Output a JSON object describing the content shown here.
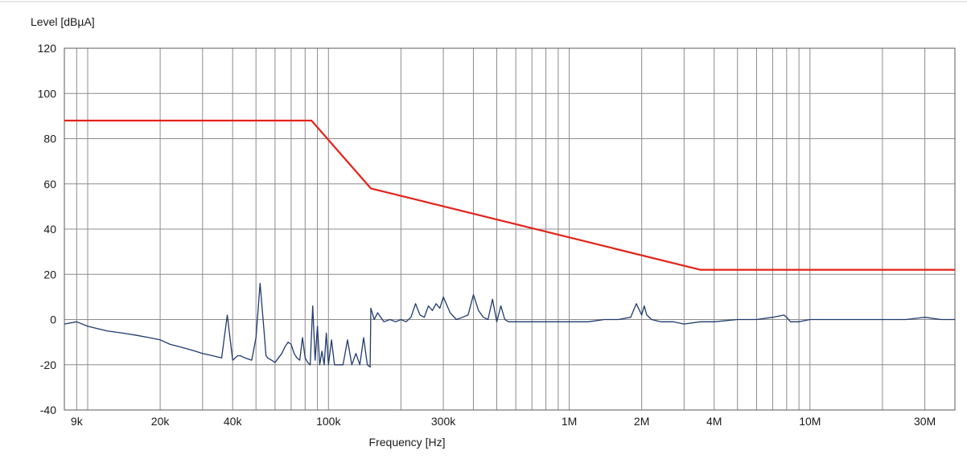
{
  "chart_data": {
    "type": "line",
    "title": "",
    "xlabel": "Frequency [Hz]",
    "ylabel": "Level [dBµA]",
    "x_scale": "log",
    "xlim": [
      8000,
      40000000
    ],
    "ylim": [
      -40,
      120
    ],
    "grid": true,
    "x_tick_labels": [
      {
        "value": 9000,
        "label": "9k"
      },
      {
        "value": 20000,
        "label": "20k"
      },
      {
        "value": 40000,
        "label": "40k"
      },
      {
        "value": 100000,
        "label": "100k"
      },
      {
        "value": 300000,
        "label": "300k"
      },
      {
        "value": 1000000,
        "label": "1M"
      },
      {
        "value": 2000000,
        "label": "2M"
      },
      {
        "value": 4000000,
        "label": "4M"
      },
      {
        "value": 10000000,
        "label": "10M"
      },
      {
        "value": 30000000,
        "label": "30M"
      }
    ],
    "y_ticks": [
      -40,
      -20,
      0,
      20,
      40,
      60,
      80,
      100,
      120
    ],
    "x_gridlines": [
      9000,
      10000,
      20000,
      30000,
      40000,
      50000,
      60000,
      70000,
      80000,
      90000,
      100000,
      200000,
      300000,
      400000,
      500000,
      600000,
      700000,
      800000,
      900000,
      1000000,
      2000000,
      3000000,
      4000000,
      5000000,
      6000000,
      7000000,
      8000000,
      9000000,
      10000000,
      20000000,
      30000000
    ],
    "series": [
      {
        "color": "#e2231a",
        "x": [
          8000,
          85000,
          150000,
          3500000,
          40000000
        ],
        "y": [
          88,
          88,
          58,
          22,
          22
        ]
      },
      {
        "color": "#1f3a6e",
        "x": [
          8000,
          9000,
          10000,
          12000,
          14000,
          16000,
          18000,
          20000,
          22000,
          24000,
          26000,
          28000,
          30000,
          33000,
          36000,
          38000,
          40000,
          41000,
          42000,
          43000,
          45000,
          48000,
          50000,
          52000,
          54000,
          55000,
          56000,
          58000,
          60000,
          62000,
          64000,
          66000,
          68000,
          70000,
          72000,
          74000,
          76000,
          78000,
          80000,
          82000,
          84000,
          86000,
          88000,
          90000,
          92000,
          94000,
          96000,
          98000,
          100000,
          103000,
          106000,
          110000,
          115000,
          120000,
          125000,
          130000,
          135000,
          140000,
          145000,
          149000,
          150000,
          155000,
          160000,
          170000,
          180000,
          190000,
          200000,
          210000,
          220000,
          230000,
          240000,
          250000,
          260000,
          270000,
          280000,
          290000,
          300000,
          320000,
          340000,
          360000,
          380000,
          400000,
          420000,
          440000,
          460000,
          480000,
          500000,
          520000,
          540000,
          560000,
          600000,
          650000,
          700000,
          800000,
          900000,
          1000000,
          1200000,
          1400000,
          1600000,
          1800000,
          1900000,
          2000000,
          2050000,
          2100000,
          2200000,
          2400000,
          2700000,
          3000000,
          3500000,
          4000000,
          5000000,
          6000000,
          7000000,
          7800000,
          8000000,
          8300000,
          9000000,
          10000000,
          12000000,
          15000000,
          20000000,
          25000000,
          30000000,
          35000000,
          40000000
        ],
        "y": [
          -2,
          -1,
          -3,
          -5,
          -6,
          -7,
          -8,
          -9,
          -11,
          -12,
          -13,
          -14,
          -15,
          -16,
          -17,
          2,
          -18,
          -17,
          -16,
          -16,
          -17,
          -18,
          -8,
          16,
          -5,
          -16,
          -17,
          -18,
          -19,
          -17,
          -15,
          -12,
          -10,
          -11,
          -15,
          -17,
          -18,
          -8,
          -17,
          -19,
          -20,
          6,
          -18,
          -3,
          -20,
          -14,
          -20,
          -6,
          -20,
          -9,
          -20,
          -20,
          -20,
          -9,
          -20,
          -15,
          -20,
          -8,
          -20,
          -21,
          5,
          0,
          3,
          -1,
          0,
          -1,
          0,
          -1,
          1,
          7,
          2,
          1,
          6,
          4,
          7,
          5,
          10,
          3,
          0,
          1,
          2,
          11,
          4,
          1,
          0,
          9,
          -1,
          6,
          0,
          -1,
          -1,
          -1,
          -1,
          -1,
          -1,
          -1,
          -1,
          0,
          0,
          1,
          7,
          2,
          6,
          2,
          0,
          -1,
          -1,
          -2,
          -1,
          -1,
          0,
          0,
          1,
          2,
          1,
          -1,
          -1,
          0,
          0,
          0,
          0,
          0,
          1,
          0,
          0
        ]
      }
    ]
  }
}
